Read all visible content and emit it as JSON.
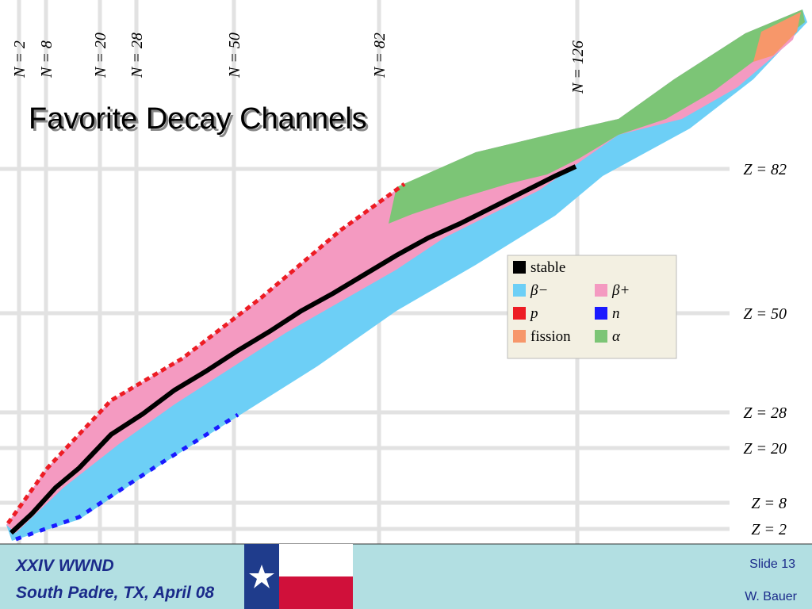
{
  "title": "Favorite Decay Channels",
  "neutron_lines": [
    "N = 2",
    "N = 8",
    "N = 20",
    "N = 28",
    "N = 50",
    "N = 82",
    "N = 126"
  ],
  "proton_lines": [
    "Z = 82",
    "Z = 50",
    "Z = 28",
    "Z = 20",
    "Z = 8",
    "Z = 2"
  ],
  "legend": {
    "items": [
      {
        "label": "stable",
        "color": "#000000"
      },
      {
        "label": "β−",
        "color": "#6dcff6"
      },
      {
        "label": "β+",
        "color": "#f49ac1"
      },
      {
        "label": "p",
        "color": "#ed1c24"
      },
      {
        "label": "n",
        "color": "#1a1aff"
      },
      {
        "label": "fission",
        "color": "#f7976a"
      },
      {
        "label": "α",
        "color": "#7cc576"
      }
    ]
  },
  "footer": {
    "event": "XXIV WWND",
    "place": "South Padre, TX, April 08",
    "slide": "Slide 13",
    "author": "W. Bauer"
  }
}
